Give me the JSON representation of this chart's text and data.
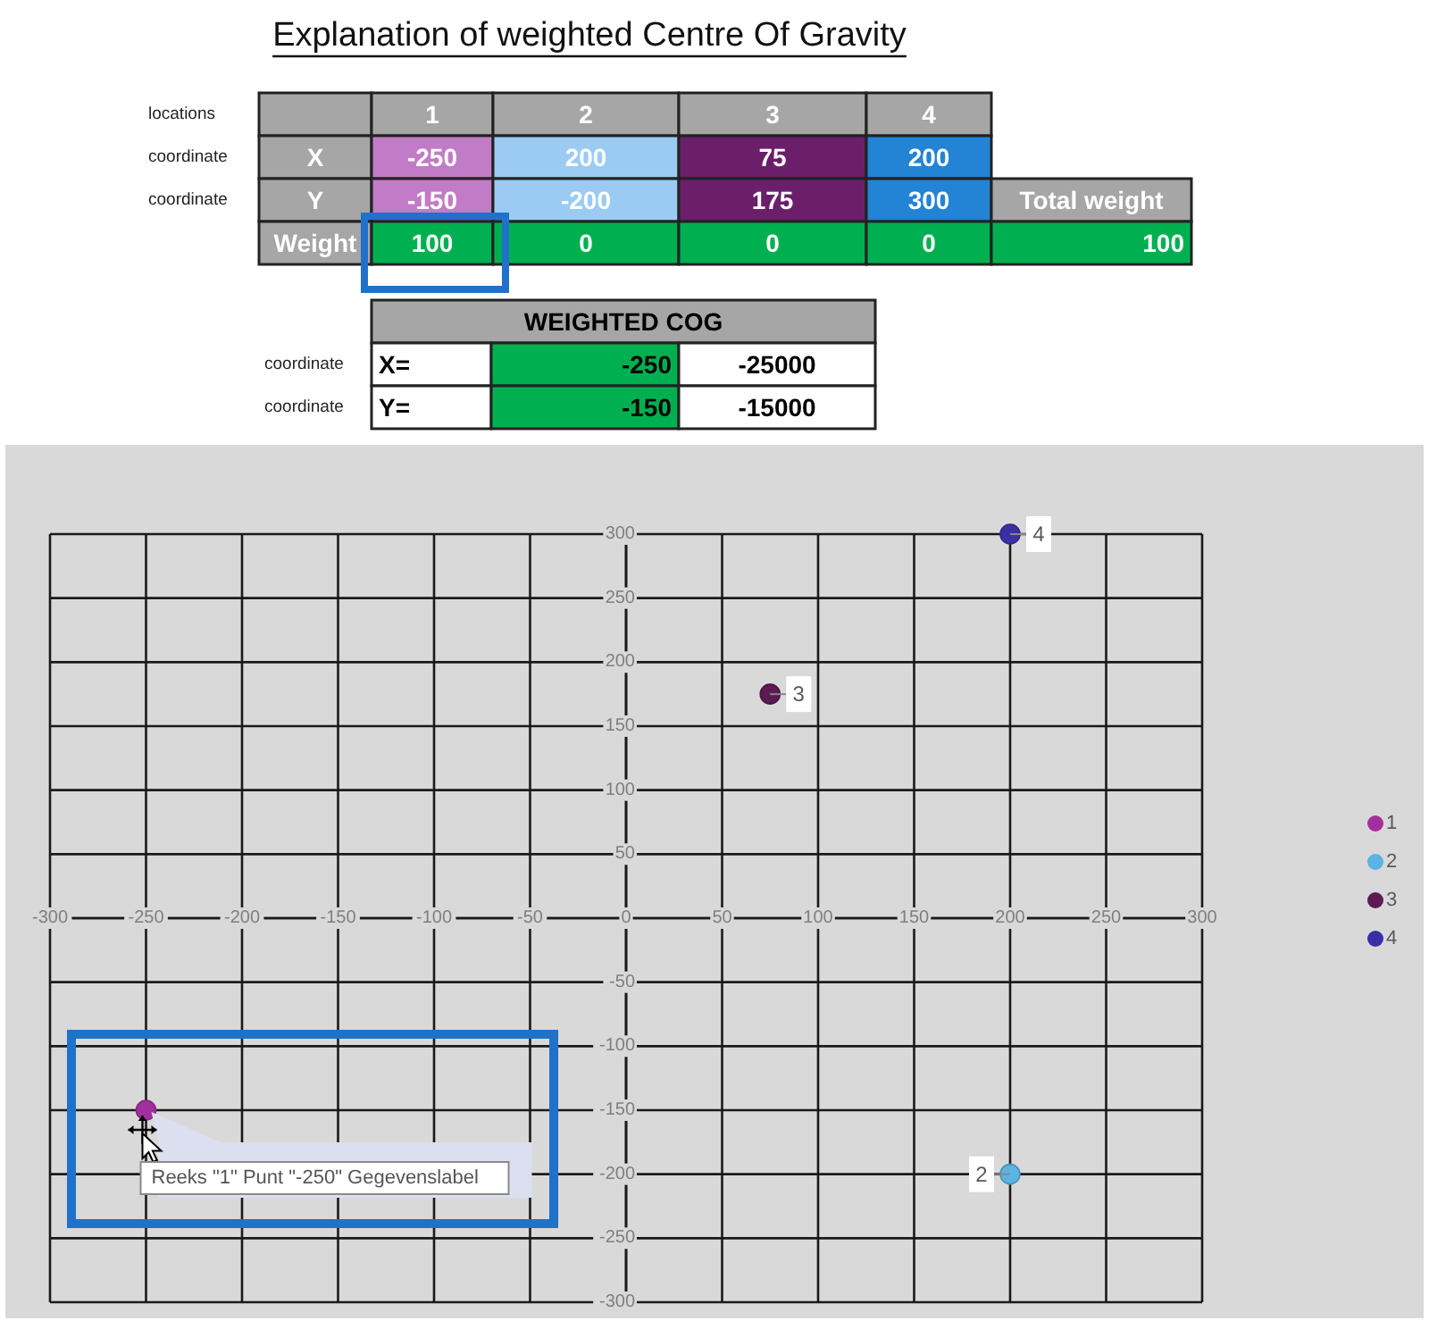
{
  "chart_data": [
    {
      "type": "heatmap",
      "title": "Explanation of weighted Centre Of Gravity",
      "categories": [
        "1",
        "2",
        "3",
        "4"
      ],
      "y_categories": [
        "X",
        "Y",
        "Weight"
      ],
      "cells": [
        [
          -250,
          200,
          75,
          200
        ],
        [
          -150,
          -200,
          175,
          300
        ],
        [
          100,
          0,
          0,
          0
        ]
      ],
      "data_labels": true,
      "annotations": [
        "locations",
        "coordinate",
        "coordinate",
        "Total weight",
        "100",
        "WEIGHTED COG",
        "coordinate",
        "X=",
        "-250",
        "-25000",
        "coordinate",
        "Y=",
        "-150",
        "-15000"
      ]
    },
    {
      "type": "scatter",
      "series": [
        {
          "name": "1",
          "color": "#a2309c",
          "x": [
            -250
          ],
          "values": [
            -150
          ]
        },
        {
          "name": "2",
          "color": "#5ab4e4",
          "x": [
            200
          ],
          "values": [
            -200
          ]
        },
        {
          "name": "3",
          "color": "#5b1a52",
          "x": [
            75
          ],
          "values": [
            175
          ]
        },
        {
          "name": "4",
          "color": "#3b2fa6",
          "x": [
            200
          ],
          "values": [
            300
          ]
        }
      ],
      "xlim": [
        -300,
        300
      ],
      "ylim": [
        -300,
        300
      ],
      "xticks": [
        -300,
        -250,
        -200,
        -150,
        -100,
        -50,
        0,
        50,
        100,
        150,
        200,
        250,
        300
      ],
      "yticks": [
        -300,
        -250,
        -200,
        -150,
        -100,
        -50,
        {
          "value": 0,
          "label": null
        },
        50,
        100,
        150,
        200,
        250,
        300
      ],
      "grid": true,
      "legend": "right",
      "marker": "circle",
      "annotations": [
        "Reeks \"1\" Punt \"-250\" Gegevenslabel"
      ]
    }
  ]
}
